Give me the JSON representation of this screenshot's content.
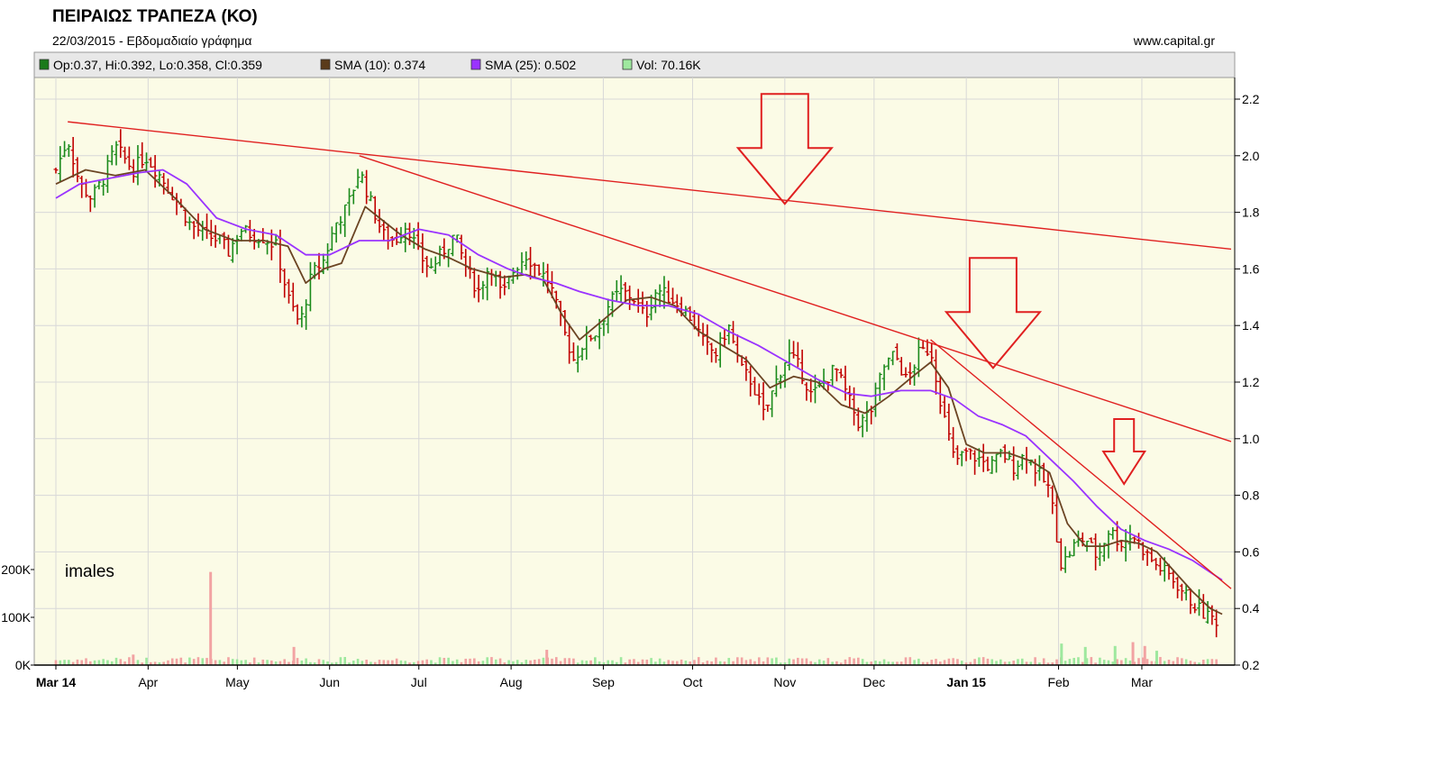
{
  "header": {
    "title": "ΠΕΙΡΑΙΩΣ ΤΡΑΠΕΖΑ (ΚΟ)",
    "subtitle": "22/03/2015 - Εβδομαδιαίο γράφημα",
    "source": "www.capital.gr"
  },
  "legend": [
    {
      "label": "Op:0.37, Hi:0.392, Lo:0.358, Cl:0.359",
      "color": "#1a7a1a"
    },
    {
      "label": "SMA (10): 0.374",
      "color": "#5a3b1a"
    },
    {
      "label": "SMA (25): 0.502",
      "color": "#9a33ff"
    },
    {
      "label": "Vol: 70.16K",
      "color": "#9ee89e"
    }
  ],
  "annotation": "imales",
  "colors": {
    "background": "#fbfbe6",
    "grid": "#d8d8d8",
    "up": "#1a8a1a",
    "down": "#c00000",
    "sma10": "#6b4423",
    "sma25": "#9a33ff",
    "trendline": "#e02020",
    "vol_up": "#9ee89e",
    "vol_down": "#f2a3a3"
  },
  "chart_data": {
    "type": "line",
    "ylim": [
      0.2,
      2.3
    ],
    "yticks": [
      "2.2",
      "2.0",
      "1.8",
      "1.6",
      "1.4",
      "1.2",
      "1.0",
      "0.8",
      "0.6",
      "0.4",
      "0.2"
    ],
    "vol_ticks": [
      "200K",
      "100K",
      "0K"
    ],
    "vol_max": 230,
    "x_labels": [
      {
        "label": "Mar 14",
        "bold": true,
        "day": 0
      },
      {
        "label": "Apr",
        "bold": false,
        "day": 31
      },
      {
        "label": "May",
        "bold": false,
        "day": 61
      },
      {
        "label": "Jun",
        "bold": false,
        "day": 92
      },
      {
        "label": "Jul",
        "bold": false,
        "day": 122
      },
      {
        "label": "Aug",
        "bold": false,
        "day": 153
      },
      {
        "label": "Sep",
        "bold": false,
        "day": 184
      },
      {
        "label": "Oct",
        "bold": false,
        "day": 214
      },
      {
        "label": "Nov",
        "bold": false,
        "day": 245
      },
      {
        "label": "Dec",
        "bold": false,
        "day": 275
      },
      {
        "label": "Jan 15",
        "bold": true,
        "day": 306
      },
      {
        "label": "Feb",
        "bold": false,
        "day": 337
      },
      {
        "label": "Mar",
        "bold": false,
        "day": 365
      }
    ],
    "series": [
      {
        "name": "Close",
        "points": [
          [
            0,
            1.95
          ],
          [
            4,
            2.06
          ],
          [
            8,
            1.9
          ],
          [
            12,
            1.85
          ],
          [
            16,
            1.92
          ],
          [
            20,
            2.03
          ],
          [
            26,
            1.95
          ],
          [
            30,
            2.0
          ],
          [
            35,
            1.93
          ],
          [
            40,
            1.85
          ],
          [
            45,
            1.76
          ],
          [
            50,
            1.72
          ],
          [
            55,
            1.7
          ],
          [
            58,
            1.66
          ],
          [
            62,
            1.74
          ],
          [
            66,
            1.72
          ],
          [
            70,
            1.71
          ],
          [
            74,
            1.68
          ],
          [
            78,
            1.5
          ],
          [
            82,
            1.4
          ],
          [
            86,
            1.58
          ],
          [
            90,
            1.63
          ],
          [
            94,
            1.76
          ],
          [
            98,
            1.82
          ],
          [
            102,
            1.95
          ],
          [
            106,
            1.83
          ],
          [
            110,
            1.72
          ],
          [
            114,
            1.7
          ],
          [
            118,
            1.76
          ],
          [
            122,
            1.65
          ],
          [
            126,
            1.6
          ],
          [
            130,
            1.66
          ],
          [
            134,
            1.72
          ],
          [
            138,
            1.6
          ],
          [
            142,
            1.52
          ],
          [
            146,
            1.62
          ],
          [
            150,
            1.5
          ],
          [
            154,
            1.6
          ],
          [
            158,
            1.65
          ],
          [
            162,
            1.6
          ],
          [
            166,
            1.55
          ],
          [
            170,
            1.4
          ],
          [
            174,
            1.28
          ],
          [
            178,
            1.35
          ],
          [
            182,
            1.38
          ],
          [
            186,
            1.48
          ],
          [
            190,
            1.52
          ],
          [
            194,
            1.5
          ],
          [
            198,
            1.43
          ],
          [
            202,
            1.53
          ],
          [
            206,
            1.5
          ],
          [
            210,
            1.47
          ],
          [
            214,
            1.42
          ],
          [
            218,
            1.33
          ],
          [
            222,
            1.3
          ],
          [
            226,
            1.4
          ],
          [
            230,
            1.25
          ],
          [
            234,
            1.2
          ],
          [
            238,
            1.08
          ],
          [
            242,
            1.2
          ],
          [
            246,
            1.3
          ],
          [
            250,
            1.25
          ],
          [
            254,
            1.15
          ],
          [
            258,
            1.2
          ],
          [
            262,
            1.25
          ],
          [
            266,
            1.15
          ],
          [
            270,
            1.05
          ],
          [
            274,
            1.1
          ],
          [
            278,
            1.25
          ],
          [
            282,
            1.3
          ],
          [
            286,
            1.2
          ],
          [
            290,
            1.3
          ],
          [
            294,
            1.32
          ],
          [
            298,
            1.1
          ],
          [
            302,
            0.92
          ],
          [
            306,
            0.95
          ],
          [
            310,
            0.93
          ],
          [
            314,
            0.9
          ],
          [
            318,
            0.95
          ],
          [
            322,
            0.9
          ],
          [
            326,
            0.95
          ],
          [
            330,
            0.88
          ],
          [
            334,
            0.82
          ],
          [
            338,
            0.55
          ],
          [
            342,
            0.62
          ],
          [
            346,
            0.65
          ],
          [
            350,
            0.58
          ],
          [
            354,
            0.68
          ],
          [
            358,
            0.63
          ],
          [
            362,
            0.66
          ],
          [
            366,
            0.6
          ],
          [
            370,
            0.55
          ],
          [
            374,
            0.52
          ],
          [
            378,
            0.47
          ],
          [
            382,
            0.42
          ],
          [
            386,
            0.38
          ],
          [
            390,
            0.36
          ]
        ]
      },
      {
        "name": "SMA (10)",
        "points": [
          [
            0,
            1.9
          ],
          [
            10,
            1.95
          ],
          [
            20,
            1.93
          ],
          [
            30,
            1.95
          ],
          [
            40,
            1.85
          ],
          [
            50,
            1.74
          ],
          [
            60,
            1.7
          ],
          [
            70,
            1.7
          ],
          [
            78,
            1.68
          ],
          [
            84,
            1.55
          ],
          [
            90,
            1.6
          ],
          [
            96,
            1.62
          ],
          [
            104,
            1.82
          ],
          [
            110,
            1.77
          ],
          [
            116,
            1.72
          ],
          [
            124,
            1.67
          ],
          [
            132,
            1.64
          ],
          [
            140,
            1.6
          ],
          [
            150,
            1.57
          ],
          [
            158,
            1.58
          ],
          [
            164,
            1.56
          ],
          [
            170,
            1.44
          ],
          [
            176,
            1.35
          ],
          [
            184,
            1.42
          ],
          [
            192,
            1.49
          ],
          [
            200,
            1.5
          ],
          [
            208,
            1.47
          ],
          [
            216,
            1.38
          ],
          [
            224,
            1.33
          ],
          [
            232,
            1.28
          ],
          [
            240,
            1.18
          ],
          [
            248,
            1.22
          ],
          [
            256,
            1.2
          ],
          [
            264,
            1.12
          ],
          [
            272,
            1.09
          ],
          [
            280,
            1.15
          ],
          [
            288,
            1.22
          ],
          [
            294,
            1.27
          ],
          [
            300,
            1.18
          ],
          [
            306,
            0.98
          ],
          [
            312,
            0.95
          ],
          [
            320,
            0.95
          ],
          [
            328,
            0.92
          ],
          [
            334,
            0.88
          ],
          [
            340,
            0.7
          ],
          [
            346,
            0.62
          ],
          [
            352,
            0.62
          ],
          [
            358,
            0.64
          ],
          [
            364,
            0.63
          ],
          [
            370,
            0.6
          ],
          [
            376,
            0.53
          ],
          [
            382,
            0.46
          ],
          [
            388,
            0.4
          ],
          [
            392,
            0.38
          ]
        ]
      },
      {
        "name": "SMA (25)",
        "points": [
          [
            0,
            1.85
          ],
          [
            8,
            1.9
          ],
          [
            18,
            1.92
          ],
          [
            28,
            1.94
          ],
          [
            36,
            1.95
          ],
          [
            44,
            1.9
          ],
          [
            54,
            1.78
          ],
          [
            64,
            1.74
          ],
          [
            74,
            1.72
          ],
          [
            84,
            1.65
          ],
          [
            92,
            1.65
          ],
          [
            102,
            1.7
          ],
          [
            112,
            1.7
          ],
          [
            122,
            1.74
          ],
          [
            132,
            1.72
          ],
          [
            142,
            1.65
          ],
          [
            152,
            1.6
          ],
          [
            160,
            1.57
          ],
          [
            168,
            1.55
          ],
          [
            176,
            1.52
          ],
          [
            186,
            1.49
          ],
          [
            196,
            1.47
          ],
          [
            206,
            1.47
          ],
          [
            216,
            1.44
          ],
          [
            226,
            1.38
          ],
          [
            236,
            1.33
          ],
          [
            246,
            1.27
          ],
          [
            256,
            1.21
          ],
          [
            266,
            1.16
          ],
          [
            274,
            1.15
          ],
          [
            284,
            1.17
          ],
          [
            294,
            1.17
          ],
          [
            302,
            1.14
          ],
          [
            310,
            1.08
          ],
          [
            318,
            1.05
          ],
          [
            326,
            1.01
          ],
          [
            334,
            0.93
          ],
          [
            342,
            0.85
          ],
          [
            350,
            0.76
          ],
          [
            358,
            0.68
          ],
          [
            366,
            0.64
          ],
          [
            374,
            0.61
          ],
          [
            382,
            0.57
          ],
          [
            392,
            0.5
          ]
        ]
      }
    ],
    "trendlines": [
      {
        "from": [
          4,
          2.12
        ],
        "to": [
          395,
          1.67
        ]
      },
      {
        "from": [
          102,
          2.0
        ],
        "to": [
          395,
          0.99
        ]
      },
      {
        "from": [
          294,
          1.35
        ],
        "to": [
          395,
          0.47
        ]
      }
    ],
    "arrows": [
      {
        "day": 245,
        "tip": 1.83,
        "size": "large"
      },
      {
        "day": 315,
        "tip": 1.25,
        "size": "large"
      },
      {
        "day": 359,
        "tip": 0.84,
        "size": "small"
      }
    ],
    "volume_spikes": [
      {
        "day": 52,
        "value": 195,
        "dir": "down"
      },
      {
        "day": 80,
        "value": 38,
        "dir": "down"
      },
      {
        "day": 165,
        "value": 32,
        "dir": "down"
      },
      {
        "day": 26,
        "value": 22,
        "dir": "down"
      },
      {
        "day": 338,
        "value": 45,
        "dir": "up"
      },
      {
        "day": 346,
        "value": 38,
        "dir": "up"
      },
      {
        "day": 356,
        "value": 40,
        "dir": "up"
      },
      {
        "day": 362,
        "value": 48,
        "dir": "down"
      },
      {
        "day": 366,
        "value": 40,
        "dir": "down"
      },
      {
        "day": 370,
        "value": 30,
        "dir": "up"
      }
    ]
  }
}
